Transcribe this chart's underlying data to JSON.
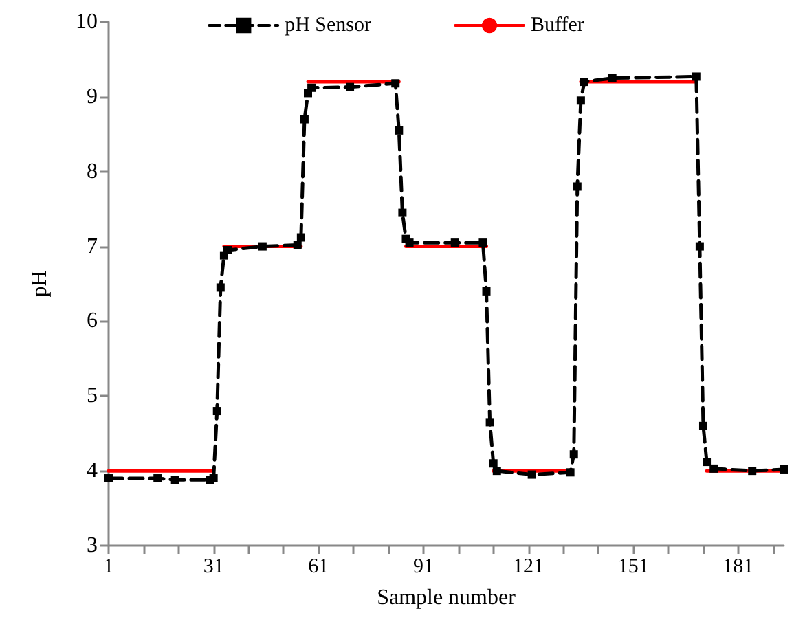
{
  "chart_data": {
    "type": "line",
    "xlabel": "Sample number",
    "ylabel": "pH",
    "xlim": [
      1,
      194
    ],
    "xticks": [
      1,
      {
        "value": 11,
        "label": null
      },
      {
        "value": 21,
        "label": null
      },
      31,
      {
        "value": 41,
        "label": null
      },
      {
        "value": 51,
        "label": null
      },
      61,
      {
        "value": 71,
        "label": null
      },
      {
        "value": 81,
        "label": null
      },
      91,
      {
        "value": 101,
        "label": null
      },
      {
        "value": 111,
        "label": null
      },
      121,
      {
        "value": 131,
        "label": null
      },
      {
        "value": 141,
        "label": null
      },
      151,
      {
        "value": 161,
        "label": null
      },
      {
        "value": 171,
        "label": null
      },
      181,
      {
        "value": 191,
        "label": null
      }
    ],
    "ylim": [
      3,
      10
    ],
    "yticks": [
      3,
      4,
      5,
      6,
      7,
      8,
      9,
      10
    ],
    "grid": false,
    "legend": "top",
    "series": [
      {
        "name": "pH Sensor",
        "color": "#000000",
        "marker": "square",
        "line_style": "dashed",
        "x": [
          1,
          15,
          20,
          30,
          31,
          32,
          33,
          34,
          35,
          45,
          55,
          56,
          57,
          58,
          59,
          70,
          83,
          84,
          85,
          86,
          87,
          100,
          108,
          109,
          110,
          111,
          112,
          122,
          133,
          134,
          135,
          136,
          137,
          145,
          169,
          170,
          171,
          172,
          174,
          185,
          194
        ],
        "values": [
          3.9,
          3.9,
          3.88,
          3.88,
          3.9,
          4.8,
          6.45,
          6.88,
          6.95,
          7.0,
          7.02,
          7.12,
          8.7,
          9.05,
          9.12,
          9.13,
          9.18,
          8.55,
          7.45,
          7.1,
          7.05,
          7.05,
          7.05,
          6.4,
          4.65,
          4.1,
          4.0,
          3.95,
          3.98,
          4.22,
          7.8,
          8.95,
          9.2,
          9.25,
          9.27,
          7.0,
          4.6,
          4.12,
          4.03,
          4.0,
          4.02
        ]
      },
      {
        "name": "Buffer",
        "color": "#ff0000",
        "marker": "none",
        "line_style": "solid",
        "x": [
          1,
          31,
          32,
          34,
          56,
          57,
          58,
          84,
          85,
          86,
          109,
          110,
          111,
          133,
          134,
          136,
          169,
          170,
          172,
          194
        ],
        "values": [
          4,
          4,
          null,
          7,
          7,
          null,
          9.2,
          9.2,
          null,
          7,
          7,
          null,
          4,
          4,
          null,
          9.2,
          9.2,
          null,
          4,
          4
        ]
      }
    ]
  }
}
